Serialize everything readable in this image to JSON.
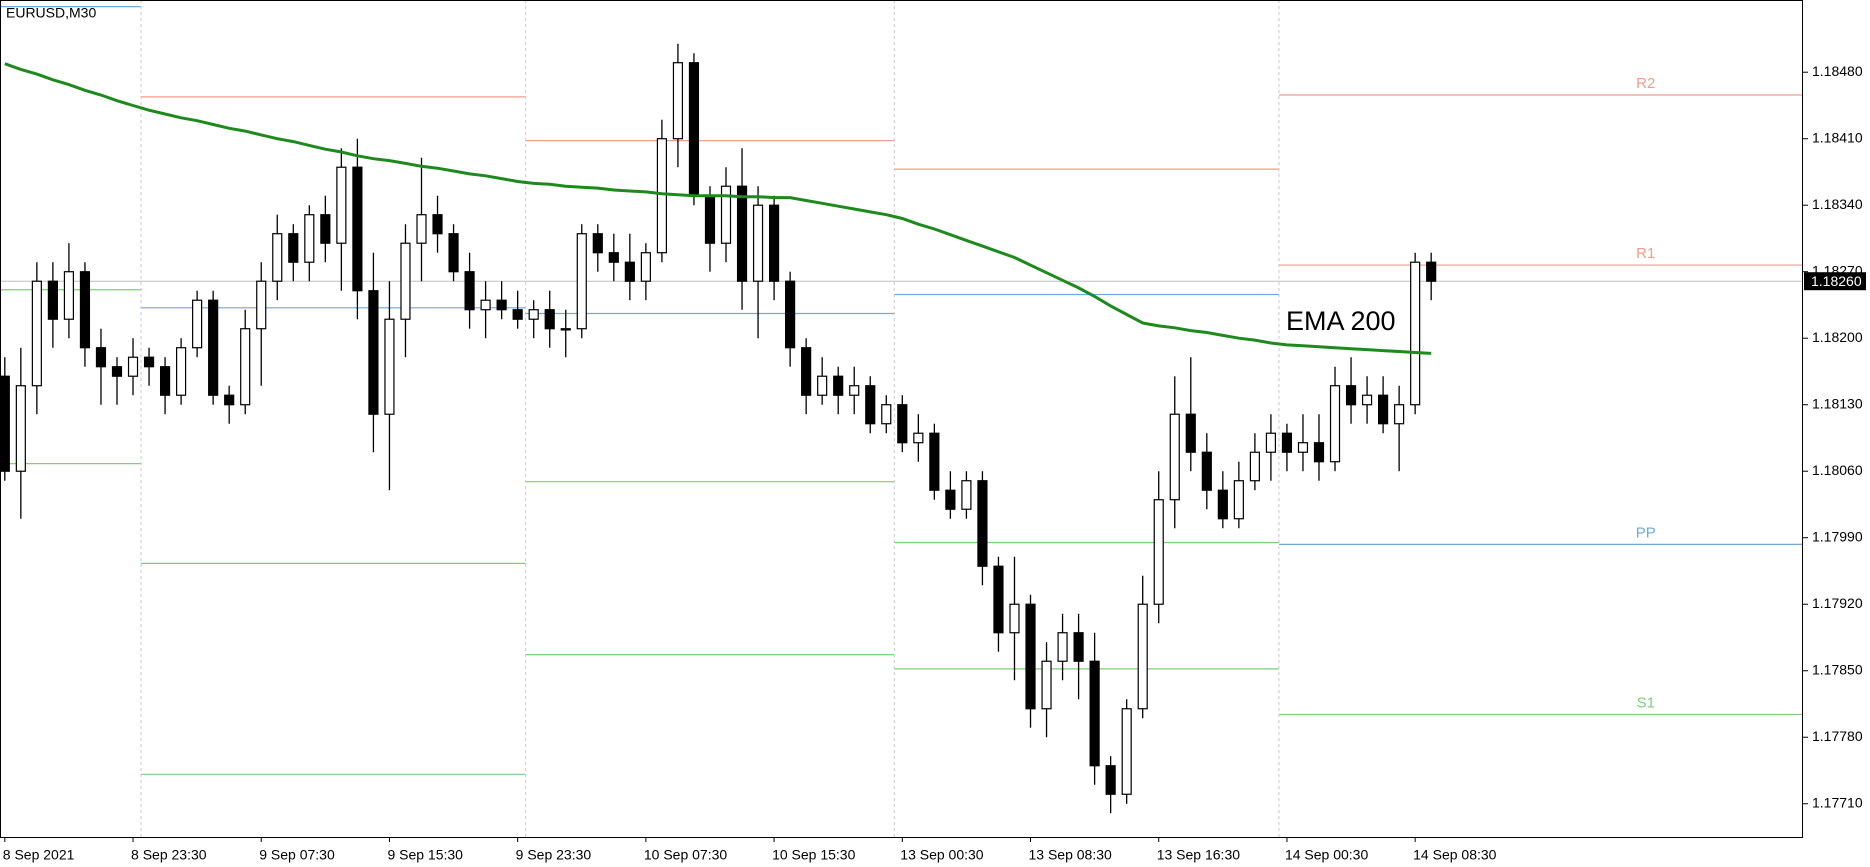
{
  "chart_data": {
    "type": "candlestick",
    "title": "EURUSD,M30",
    "categories": [
      "8 Sep 2021",
      null,
      null,
      null,
      null,
      null,
      null,
      null,
      "8 Sep 23:30",
      null,
      null,
      null,
      null,
      null,
      null,
      null,
      "9 Sep 07:30",
      null,
      null,
      null,
      null,
      null,
      null,
      null,
      "9 Sep 15:30",
      null,
      null,
      null,
      null,
      null,
      null,
      null,
      "9 Sep 23:30",
      null,
      null,
      null,
      null,
      null,
      null,
      null,
      "10 Sep 07:30",
      null,
      null,
      null,
      null,
      null,
      null,
      null,
      "10 Sep 15:30",
      null,
      null,
      null,
      null,
      null,
      null,
      null,
      "13 Sep 00:30",
      null,
      null,
      null,
      null,
      null,
      null,
      null,
      "13 Sep 08:30",
      null,
      null,
      null,
      null,
      null,
      null,
      null,
      "13 Sep 16:30",
      null,
      null,
      null,
      null,
      null,
      null,
      null,
      "14 Sep 00:30",
      null,
      null,
      null,
      null,
      null,
      null,
      null,
      "14 Sep 08:30",
      null
    ],
    "open": [
      1.1816,
      1.1806,
      1.1815,
      1.1826,
      1.1822,
      1.1827,
      1.1819,
      1.1817,
      1.1816,
      1.1818,
      1.1817,
      1.1814,
      1.1819,
      1.1824,
      1.1814,
      1.1813,
      1.1821,
      1.1826,
      1.1831,
      1.1828,
      1.1833,
      1.183,
      1.1838,
      1.1825,
      1.1812,
      1.1822,
      1.183,
      1.1833,
      1.1831,
      1.1827,
      1.1823,
      1.1824,
      1.1823,
      1.1822,
      1.1823,
      1.1821,
      1.1821,
      1.1831,
      1.1829,
      1.1828,
      1.1826,
      1.1829,
      1.1841,
      1.1849,
      1.1835,
      1.183,
      1.1836,
      1.1826,
      1.1834,
      1.1826,
      1.1819,
      1.1814,
      1.1816,
      1.1814,
      1.1815,
      1.1811,
      1.1813,
      1.1809,
      1.181,
      1.1804,
      1.1802,
      1.1805,
      1.1796,
      1.1789,
      1.1792,
      1.1781,
      1.1786,
      1.1789,
      1.1786,
      1.1775,
      1.1772,
      1.1781,
      1.1792,
      1.1803,
      1.1812,
      1.1808,
      1.1804,
      1.1801,
      1.1805,
      1.1808,
      1.181,
      1.1808,
      1.1809,
      1.1807,
      1.1815,
      1.1813,
      1.1814,
      1.1811,
      1.1813,
      1.1828
    ],
    "high": [
      1.1818,
      1.1819,
      1.1828,
      1.1828,
      1.183,
      1.1828,
      1.1821,
      1.1818,
      1.182,
      1.1819,
      1.1818,
      1.182,
      1.1825,
      1.1825,
      1.1815,
      1.1823,
      1.1828,
      1.1833,
      1.1832,
      1.1834,
      1.1835,
      1.184,
      1.1841,
      1.1829,
      1.1826,
      1.1832,
      1.1839,
      1.1835,
      1.1832,
      1.1829,
      1.1826,
      1.1826,
      1.1825,
      1.1824,
      1.1825,
      1.1823,
      1.1832,
      1.1832,
      1.1831,
      1.1831,
      1.183,
      1.1843,
      1.1851,
      1.185,
      1.1836,
      1.1838,
      1.184,
      1.1836,
      1.1835,
      1.1827,
      1.182,
      1.1818,
      1.1817,
      1.1817,
      1.1816,
      1.1814,
      1.1814,
      1.1812,
      1.1811,
      1.1806,
      1.1806,
      1.1806,
      1.1797,
      1.1797,
      1.1793,
      1.1788,
      1.1791,
      1.1791,
      1.1789,
      1.1776,
      1.1782,
      1.1795,
      1.1806,
      1.1816,
      1.1818,
      1.181,
      1.1806,
      1.1807,
      1.181,
      1.1812,
      1.1811,
      1.1812,
      1.1812,
      1.1817,
      1.1818,
      1.1816,
      1.1816,
      1.1815,
      1.1829,
      1.1829
    ],
    "low": [
      1.1805,
      1.1801,
      1.1812,
      1.1819,
      1.182,
      1.1817,
      1.1813,
      1.1813,
      1.1814,
      1.1815,
      1.1812,
      1.1813,
      1.1818,
      1.1813,
      1.1811,
      1.1812,
      1.1815,
      1.1824,
      1.1826,
      1.1826,
      1.1828,
      1.1825,
      1.1822,
      1.1808,
      1.1804,
      1.1818,
      1.1826,
      1.1829,
      1.1826,
      1.1821,
      1.182,
      1.1822,
      1.1821,
      1.182,
      1.1819,
      1.1818,
      1.182,
      1.1827,
      1.1826,
      1.1824,
      1.1824,
      1.1828,
      1.1838,
      1.1834,
      1.1827,
      1.1828,
      1.1823,
      1.182,
      1.1824,
      1.1817,
      1.1812,
      1.1813,
      1.1812,
      1.1812,
      1.181,
      1.181,
      1.1808,
      1.1807,
      1.1803,
      1.1801,
      1.1801,
      1.1794,
      1.1787,
      1.1784,
      1.1779,
      1.1778,
      1.1784,
      1.1782,
      1.1773,
      1.177,
      1.1771,
      1.178,
      1.179,
      1.18,
      1.1806,
      1.1802,
      1.18,
      1.18,
      1.1804,
      1.1805,
      1.1806,
      1.1806,
      1.1805,
      1.1806,
      1.1811,
      1.1811,
      1.181,
      1.1806,
      1.1812,
      1.1824
    ],
    "close": [
      1.1806,
      1.1815,
      1.1826,
      1.1822,
      1.1827,
      1.1819,
      1.1817,
      1.1816,
      1.1818,
      1.1817,
      1.1814,
      1.1819,
      1.1824,
      1.1814,
      1.1813,
      1.1821,
      1.1826,
      1.1831,
      1.1828,
      1.1833,
      1.183,
      1.1838,
      1.1825,
      1.1812,
      1.1822,
      1.183,
      1.1833,
      1.1831,
      1.1827,
      1.1823,
      1.1824,
      1.1823,
      1.1822,
      1.1823,
      1.1821,
      1.1821,
      1.1831,
      1.1829,
      1.1828,
      1.1826,
      1.1829,
      1.1841,
      1.1849,
      1.1835,
      1.183,
      1.1836,
      1.1826,
      1.1834,
      1.1826,
      1.1819,
      1.1814,
      1.1816,
      1.1814,
      1.1815,
      1.1811,
      1.1813,
      1.1809,
      1.181,
      1.1804,
      1.1802,
      1.1805,
      1.1796,
      1.1789,
      1.1792,
      1.1781,
      1.1786,
      1.1789,
      1.1786,
      1.1775,
      1.1772,
      1.1781,
      1.1792,
      1.1803,
      1.1812,
      1.1808,
      1.1804,
      1.1801,
      1.1805,
      1.1808,
      1.181,
      1.1808,
      1.1809,
      1.1807,
      1.1815,
      1.1813,
      1.1814,
      1.1811,
      1.1813,
      1.1828,
      1.1826
    ],
    "bull_color": "#ffffff",
    "bear_color": "#000000",
    "ema": {
      "name": "EMA 200",
      "color": "#1e8a1e",
      "values": [
        1.18489,
        1.18483,
        1.18478,
        1.18472,
        1.18467,
        1.18461,
        1.18456,
        1.1845,
        1.18445,
        1.1844,
        1.18436,
        1.18432,
        1.18429,
        1.18425,
        1.18421,
        1.18418,
        1.18414,
        1.1841,
        1.18407,
        1.18403,
        1.18399,
        1.18396,
        1.18392,
        1.18389,
        1.18387,
        1.18384,
        1.18381,
        1.18379,
        1.18376,
        1.18373,
        1.18371,
        1.18368,
        1.18365,
        1.18363,
        1.18362,
        1.1836,
        1.18359,
        1.18358,
        1.18356,
        1.18355,
        1.18354,
        1.18352,
        1.18351,
        1.1835,
        1.1835,
        1.1835,
        1.18349,
        1.18349,
        1.18348,
        1.18348,
        1.18345,
        1.18342,
        1.18339,
        1.18336,
        1.18333,
        1.1833,
        1.18326,
        1.1832,
        1.18315,
        1.18309,
        1.18303,
        1.18297,
        1.18291,
        1.18285,
        1.18277,
        1.18269,
        1.18261,
        1.18253,
        1.18244,
        1.18234,
        1.18225,
        1.18216,
        1.18213,
        1.18211,
        1.18208,
        1.18206,
        1.18203,
        1.182,
        1.18198,
        1.18195,
        1.18193,
        1.18192,
        1.18191,
        1.1819,
        1.18189,
        1.18188,
        1.18187,
        1.18186,
        1.18185,
        1.18184
      ]
    },
    "pivots": [
      {
        "start": -0.5,
        "end": 8.5,
        "values": [
          1.18549,
          1.18251,
          1.18068
        ],
        "colors": [
          "#6fa8dc",
          "#7ccf7c",
          "#7ccf7c"
        ]
      },
      {
        "start": 8.5,
        "end": 32.5,
        "values": [
          1.18454,
          1.18232,
          1.17963,
          1.17741
        ],
        "colors": [
          "#f19c8c",
          "#6fa8dc",
          "#7ccf7c",
          "#7ccf7c"
        ]
      },
      {
        "start": 32.5,
        "end": 55.5,
        "values": [
          1.18408,
          1.18226,
          1.18049,
          1.17867
        ],
        "colors": [
          "#f19c8c",
          "#6fa8dc",
          "#7ccf7c",
          "#7ccf7c"
        ]
      },
      {
        "start": 55.5,
        "end": 79.5,
        "values": [
          1.18378,
          1.18246,
          1.17985,
          1.17852
        ],
        "colors": [
          "#f19c8c",
          "#6fa8dc",
          "#7ccf7c",
          "#7ccf7c"
        ]
      },
      {
        "start": 79.5,
        "end": 112.2,
        "values": [
          1.18456,
          1.18277,
          1.17983,
          1.17804
        ],
        "colors": [
          "#f19c8c",
          "#f19c8c",
          "#6fa8dc",
          "#7ccf7c"
        ],
        "labels": [
          "R2",
          "R1",
          "PP",
          "S1"
        ]
      }
    ],
    "current_price": {
      "value": 1.1826,
      "label": "1.18260"
    },
    "xlim": [
      -0.3,
      112.2
    ],
    "ylim": [
      1.17675,
      1.18556
    ],
    "yticks": [
      {
        "value": 1.1771,
        "label": "1.17710"
      },
      {
        "value": 1.1778,
        "label": "1.17780"
      },
      {
        "value": 1.1785,
        "label": "1.17850"
      },
      {
        "value": 1.1792,
        "label": "1.17920"
      },
      {
        "value": 1.1799,
        "label": "1.17990"
      },
      {
        "value": 1.1806,
        "label": "1.18060"
      },
      {
        "value": 1.1813,
        "label": "1.18130"
      },
      {
        "value": 1.182,
        "label": "1.18200"
      },
      {
        "value": 1.1827,
        "label": "1.18270"
      },
      {
        "value": 1.1834,
        "label": "1.18340"
      },
      {
        "value": 1.1841,
        "label": "1.18410"
      },
      {
        "value": 1.1848,
        "label": "1.18480"
      }
    ]
  }
}
